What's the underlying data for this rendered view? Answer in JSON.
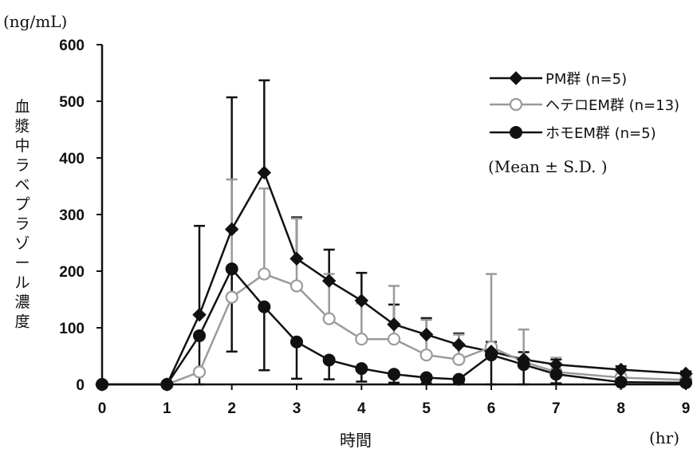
{
  "chart_data": {
    "type": "line",
    "y_unit": "(ng/mL)",
    "x_unit": "(hr)",
    "xlabel": "時間",
    "ylabel": "血漿中ラベプラゾール濃度",
    "note": "(Mean ± S.D. )",
    "xlim": [
      0,
      9
    ],
    "ylim": [
      0,
      600
    ],
    "xticks": [
      0,
      1,
      2,
      3,
      4,
      5,
      6,
      7,
      8,
      9
    ],
    "yticks": [
      0,
      100,
      200,
      300,
      400,
      500,
      600
    ],
    "x": [
      0,
      1,
      1.5,
      2,
      2.5,
      3,
      3.5,
      4,
      4.5,
      5,
      5.5,
      6,
      6.5,
      7,
      8,
      9
    ],
    "series": [
      {
        "name": "PM群 (n=5)",
        "marker": "diamond",
        "color": "#111111",
        "values": [
          0,
          0,
          123,
          274,
          374,
          222,
          183,
          148,
          106,
          88,
          70,
          58,
          44,
          35,
          26,
          19
        ],
        "sd_upper": [
          0,
          0,
          280,
          507,
          537,
          295,
          238,
          197,
          141,
          117,
          90,
          75,
          57,
          44,
          32,
          23
        ]
      },
      {
        "name": "ヘテロEM群 (n=13)",
        "marker": "open-circle",
        "color": "#9a9a9a",
        "values": [
          0,
          0,
          22,
          154,
          195,
          174,
          116,
          80,
          80,
          52,
          44,
          66,
          40,
          22,
          12,
          8
        ],
        "sd_upper": [
          0,
          0,
          0,
          362,
          346,
          293,
          195,
          143,
          174,
          114,
          88,
          195,
          97,
          47,
          18,
          13
        ]
      },
      {
        "name": "ホモEM群 (n=5)",
        "marker": "filled-circle",
        "color": "#111111",
        "values": [
          0,
          0,
          86,
          204,
          137,
          75,
          43,
          28,
          18,
          12,
          9,
          52,
          35,
          18,
          4,
          3
        ],
        "sd_lower": [
          0,
          0,
          0,
          58,
          25,
          10,
          9,
          5,
          3,
          2,
          2,
          0,
          0,
          2,
          0,
          0
        ]
      }
    ]
  }
}
